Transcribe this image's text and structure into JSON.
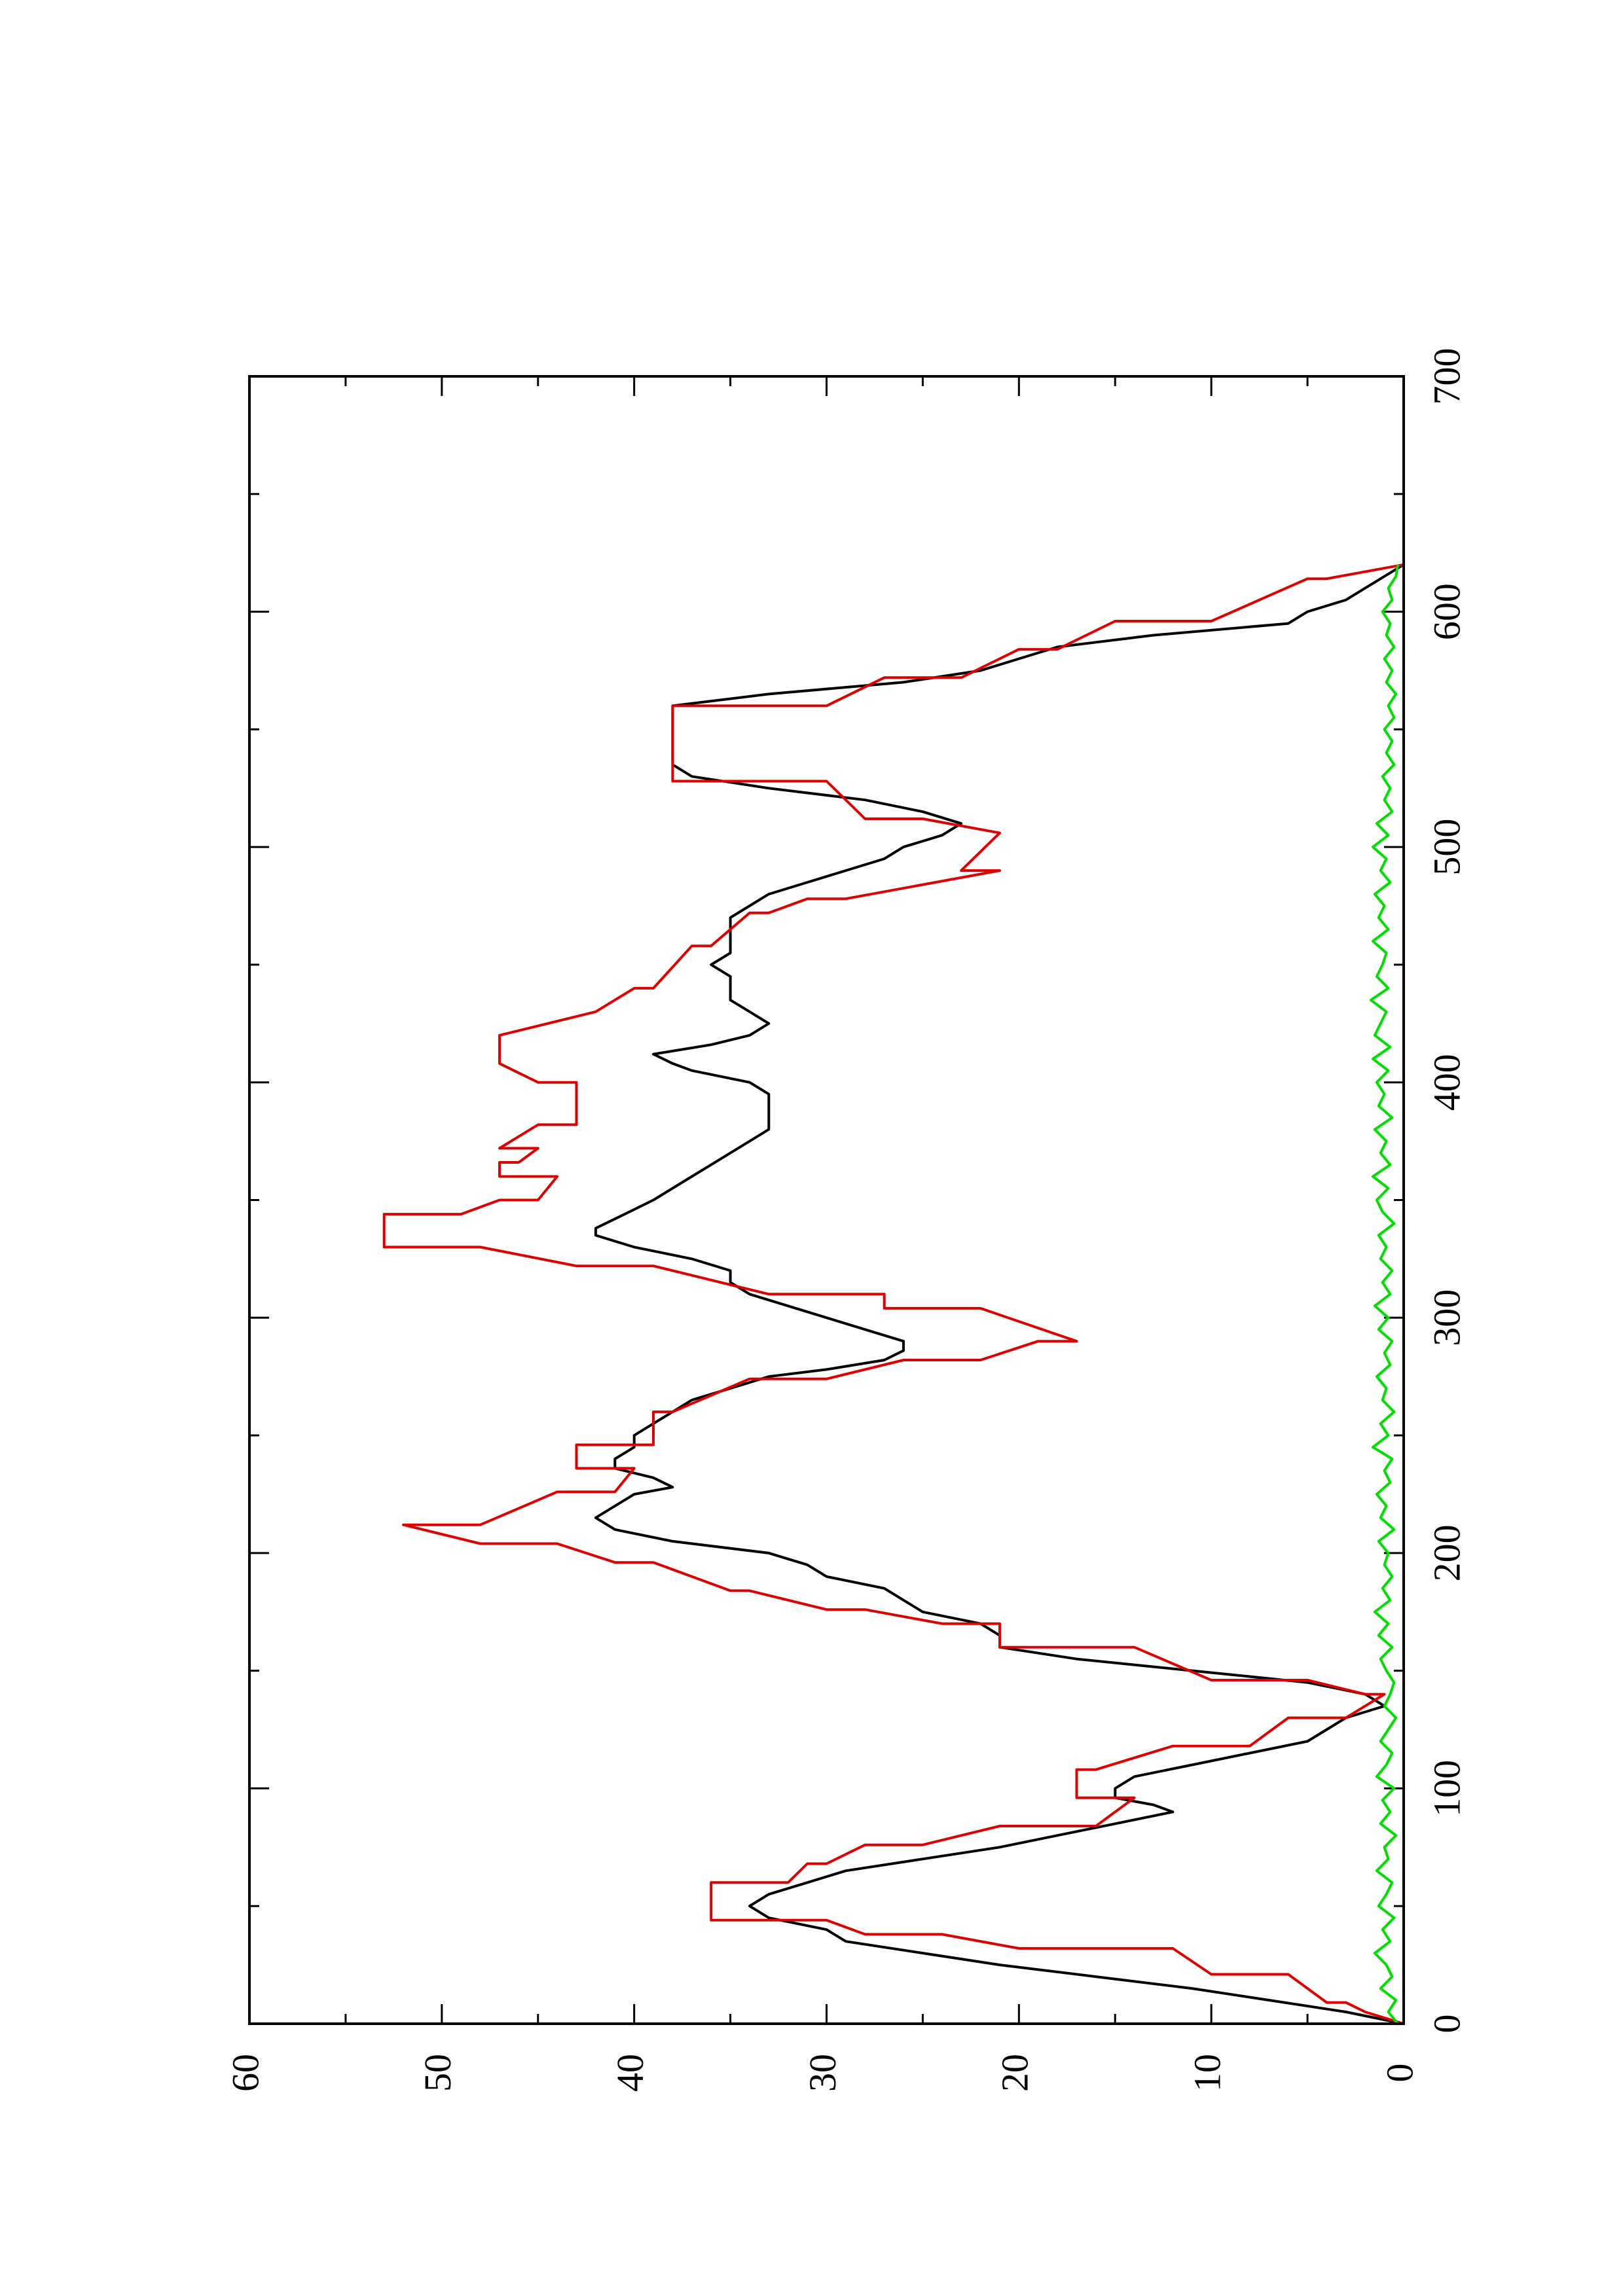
{
  "chart_data": {
    "type": "line",
    "orientation": "rotated-90-ccw",
    "xlim": [
      0,
      700
    ],
    "ylim": [
      0,
      60
    ],
    "x_ticks": [
      0,
      100,
      200,
      300,
      400,
      500,
      600,
      700
    ],
    "x_ticks_labels": [
      "0",
      "100",
      "200",
      "300",
      "400",
      "500",
      "600",
      "700"
    ],
    "x_minor_ticks": [
      50,
      150,
      250,
      350,
      450,
      550,
      650
    ],
    "y_ticks": [
      0,
      10,
      20,
      30,
      40,
      50,
      60
    ],
    "y_ticks_labels": [
      "0",
      "10",
      "20",
      "30",
      "40",
      "50",
      "60"
    ],
    "y_minor_ticks": [
      5,
      15,
      25,
      35,
      45,
      55
    ],
    "grid": false,
    "legend": "none",
    "series": [
      {
        "color": "#000000",
        "x": [
          0,
          5,
          10,
          15,
          20,
          25,
          30,
          35,
          40,
          45,
          50,
          55,
          60,
          65,
          70,
          75,
          80,
          85,
          90,
          93,
          96,
          100,
          105,
          110,
          115,
          120,
          125,
          130,
          135,
          140,
          145,
          150,
          155,
          160,
          165,
          170,
          175,
          180,
          185,
          190,
          195,
          200,
          205,
          210,
          215,
          220,
          225,
          228,
          232,
          236,
          240,
          245,
          250,
          255,
          260,
          265,
          270,
          275,
          278,
          282,
          286,
          290,
          295,
          300,
          305,
          310,
          315,
          320,
          325,
          330,
          335,
          338,
          342,
          346,
          350,
          355,
          360,
          365,
          370,
          375,
          380,
          385,
          390,
          395,
          400,
          405,
          408,
          412,
          416,
          420,
          425,
          430,
          435,
          440,
          445,
          450,
          455,
          460,
          465,
          470,
          475,
          480,
          485,
          490,
          495,
          500,
          505,
          510,
          515,
          520,
          525,
          530,
          535,
          540,
          545,
          550,
          555,
          560,
          565,
          570,
          575,
          580,
          585,
          590,
          595,
          600,
          605,
          610,
          615,
          620
        ],
        "y": [
          0,
          3,
          7,
          11,
          16,
          21,
          25,
          29,
          30,
          33,
          34,
          33,
          31,
          29,
          25,
          21,
          18,
          15,
          12,
          13,
          15,
          15,
          14,
          11,
          8,
          5,
          4,
          3,
          1,
          2,
          5,
          11,
          17,
          21,
          21,
          22,
          25,
          26,
          27,
          30,
          31,
          33,
          38,
          41,
          42,
          41,
          40,
          38,
          39,
          41,
          41,
          40,
          40,
          39,
          38,
          37,
          35,
          33,
          30,
          27,
          26,
          26,
          28,
          30,
          32,
          34,
          35,
          35,
          37,
          40,
          42,
          42,
          41,
          40,
          39,
          38,
          37,
          36,
          35,
          34,
          33,
          33,
          33,
          33,
          34,
          37,
          38,
          39,
          36,
          34,
          33,
          34,
          35,
          35,
          35,
          36,
          35,
          35,
          35,
          35,
          34,
          33,
          31,
          29,
          27,
          26,
          24,
          23,
          25,
          28,
          33,
          37,
          38,
          38,
          38,
          38,
          38,
          38,
          33,
          26,
          22,
          20,
          18,
          13,
          6,
          5,
          3,
          2,
          1,
          0
        ]
      },
      {
        "color": "#dd0000",
        "x": [
          0,
          5,
          9,
          9,
          21,
          21,
          32,
          32,
          38,
          38,
          44,
          44,
          60,
          60,
          68,
          68,
          76,
          76,
          84,
          84,
          96,
          96,
          108,
          108,
          118,
          118,
          130,
          130,
          140,
          140,
          146,
          146,
          160,
          160,
          170,
          170,
          176,
          176,
          184,
          184,
          196,
          196,
          204,
          204,
          212,
          212,
          226,
          226,
          236,
          236,
          246,
          246,
          260,
          260,
          274,
          274,
          282,
          282,
          290,
          290,
          304,
          304,
          310,
          310,
          322,
          322,
          330,
          330,
          344,
          344,
          350,
          350,
          360,
          360,
          366,
          366,
          372,
          372,
          382,
          382,
          400,
          400,
          408,
          408,
          420,
          420,
          430,
          430,
          440,
          440,
          458,
          458,
          472,
          472,
          478,
          478,
          490,
          490,
          506,
          506,
          512,
          512,
          528,
          528,
          560,
          560,
          572,
          572,
          584,
          584,
          596,
          596,
          614,
          614,
          620
        ],
        "y": [
          0,
          2,
          3,
          4,
          6,
          10,
          12,
          20,
          24,
          28,
          30,
          36,
          36,
          32,
          31,
          30,
          28,
          25,
          21,
          16,
          14,
          17,
          17,
          16,
          12,
          8,
          6,
          3,
          1,
          2,
          5,
          10,
          14,
          21,
          21,
          24,
          28,
          30,
          34,
          35,
          39,
          41,
          44,
          48,
          52,
          48,
          44,
          41,
          40,
          43,
          43,
          39,
          39,
          38,
          34,
          30,
          26,
          22,
          19,
          17,
          22,
          27,
          27,
          33,
          39,
          43,
          48,
          53,
          53,
          49,
          47,
          45,
          44,
          47,
          47,
          46,
          45,
          47,
          45,
          43,
          43,
          45,
          47,
          47,
          47,
          47,
          42,
          42,
          40,
          39,
          37,
          36,
          34,
          33,
          31,
          29,
          21,
          23,
          21,
          21,
          25,
          28,
          30,
          38,
          38,
          30,
          27,
          23,
          20,
          18,
          15,
          10,
          5,
          4,
          0
        ]
      },
      {
        "color": "#00dd00",
        "x": [
          0,
          5,
          10,
          15,
          20,
          25,
          30,
          35,
          40,
          45,
          50,
          55,
          60,
          65,
          70,
          75,
          80,
          85,
          90,
          95,
          100,
          105,
          110,
          115,
          120,
          125,
          130,
          135,
          140,
          145,
          150,
          155,
          160,
          165,
          170,
          175,
          180,
          185,
          190,
          195,
          200,
          205,
          210,
          215,
          220,
          225,
          230,
          235,
          240,
          245,
          250,
          255,
          260,
          265,
          270,
          275,
          280,
          285,
          290,
          295,
          300,
          305,
          310,
          315,
          320,
          325,
          330,
          335,
          340,
          345,
          350,
          355,
          360,
          365,
          370,
          375,
          380,
          385,
          390,
          395,
          400,
          405,
          410,
          415,
          420,
          425,
          430,
          435,
          440,
          445,
          450,
          455,
          460,
          465,
          470,
          475,
          480,
          485,
          490,
          495,
          500,
          505,
          510,
          515,
          520,
          525,
          530,
          535,
          540,
          545,
          550,
          555,
          560,
          565,
          570,
          575,
          580,
          585,
          590,
          595,
          600,
          605,
          610,
          615,
          620
        ],
        "y": [
          0.3,
          0.8,
          0.4,
          1.2,
          0.6,
          0.9,
          1.5,
          0.7,
          1.1,
          0.5,
          1.3,
          0.9,
          0.6,
          1.4,
          0.8,
          1.0,
          0.4,
          1.2,
          0.7,
          1.1,
          0.5,
          1.4,
          0.9,
          0.6,
          1.2,
          0.8,
          0.4,
          1.0,
          0.7,
          0.5,
          0.9,
          1.2,
          0.6,
          1.3,
          0.8,
          1.5,
          0.7,
          1.1,
          0.6,
          1.0,
          0.8,
          1.3,
          0.5,
          1.2,
          0.9,
          1.4,
          0.7,
          1.0,
          0.6,
          1.6,
          0.8,
          1.2,
          0.5,
          1.1,
          0.9,
          1.4,
          0.7,
          1.0,
          0.6,
          1.3,
          0.8,
          1.5,
          0.7,
          1.1,
          0.6,
          1.2,
          0.9,
          1.3,
          0.5,
          1.1,
          1.4,
          0.8,
          1.6,
          0.7,
          1.2,
          0.9,
          1.5,
          0.6,
          1.3,
          1.0,
          1.4,
          0.8,
          1.6,
          0.7,
          1.5,
          1.2,
          0.9,
          1.7,
          0.8,
          1.4,
          1.1,
          0.9,
          1.6,
          0.8,
          1.3,
          1.0,
          1.5,
          0.7,
          1.2,
          0.9,
          1.6,
          0.8,
          1.4,
          0.6,
          1.0,
          0.7,
          1.1,
          0.5,
          0.9,
          0.6,
          1.0,
          0.5,
          0.8,
          0.4,
          0.9,
          0.6,
          1.0,
          0.5,
          0.9,
          0.7,
          1.1,
          0.6,
          0.8,
          0.4,
          0.3
        ]
      }
    ]
  }
}
